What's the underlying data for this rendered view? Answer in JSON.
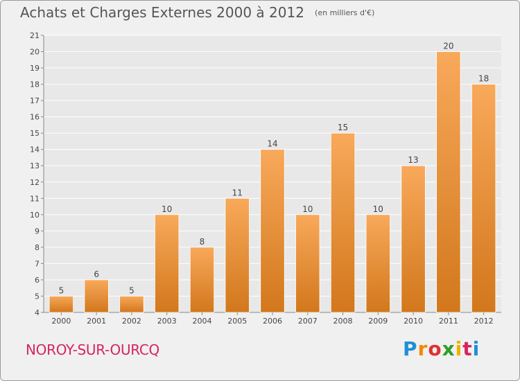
{
  "header": {
    "title": "Achats et Charges Externes 2000 à 2012",
    "unit": "(en milliers d'€)"
  },
  "footer": {
    "place": "NOROY-SUR-OURCQ",
    "brand": "Proxiti",
    "brand_colors": [
      "#1f8fd6",
      "#f08a00",
      "#e03030",
      "#2aa02a",
      "#f0b000",
      "#d6245e",
      "#1f8fd6"
    ]
  },
  "colors": {
    "bar_top": "#f8a95a",
    "bar_bottom": "#d2771c",
    "grid": "#ffffff",
    "plot_bg": "#e8e8e8",
    "place_text": "#d6245e"
  },
  "chart_data": {
    "type": "bar",
    "title": "Achats et Charges Externes 2000 à 2012",
    "subtitle": "(en milliers d'€)",
    "categories": [
      "2000",
      "2001",
      "2002",
      "2003",
      "2004",
      "2005",
      "2006",
      "2007",
      "2008",
      "2009",
      "2010",
      "2011",
      "2012"
    ],
    "values": [
      5,
      6,
      5,
      10,
      8,
      11,
      14,
      10,
      15,
      10,
      13,
      20,
      18
    ],
    "ylim": [
      4,
      21
    ],
    "yticks": [
      4,
      5,
      6,
      7,
      8,
      9,
      10,
      11,
      12,
      13,
      14,
      15,
      16,
      17,
      18,
      19,
      20,
      21
    ],
    "grid": true,
    "data_labels": true
  }
}
